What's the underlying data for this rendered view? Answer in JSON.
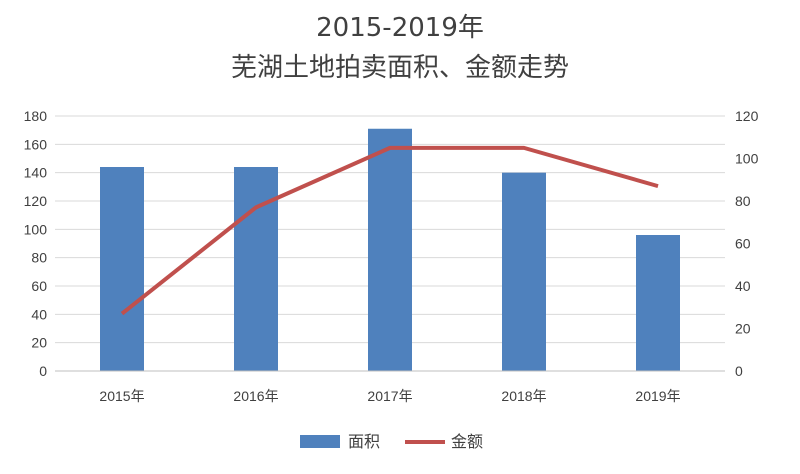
{
  "chart_data": {
    "type": "bar+line",
    "title_line1": "2015-2019年",
    "title_line2": "芜湖土地拍卖面积、金额走势",
    "categories": [
      "2015年",
      "2016年",
      "2017年",
      "2018年",
      "2019年"
    ],
    "left_axis": {
      "min": 0,
      "max": 180,
      "step": 20,
      "ticks": [
        "0",
        "20",
        "40",
        "60",
        "80",
        "100",
        "120",
        "140",
        "160",
        "180"
      ]
    },
    "right_axis": {
      "min": 0,
      "max": 120,
      "step": 20,
      "ticks": [
        "0",
        "20",
        "40",
        "60",
        "80",
        "100",
        "120"
      ]
    },
    "grid": true,
    "legend_position": "bottom",
    "series": [
      {
        "name": "面积",
        "type": "bar",
        "axis": "left",
        "color": "#4f81bd",
        "values": [
          144,
          144,
          171,
          140,
          96
        ]
      },
      {
        "name": "金额",
        "type": "line",
        "axis": "right",
        "color": "#c0504d",
        "values": [
          27,
          77,
          105,
          105,
          87
        ]
      }
    ]
  }
}
